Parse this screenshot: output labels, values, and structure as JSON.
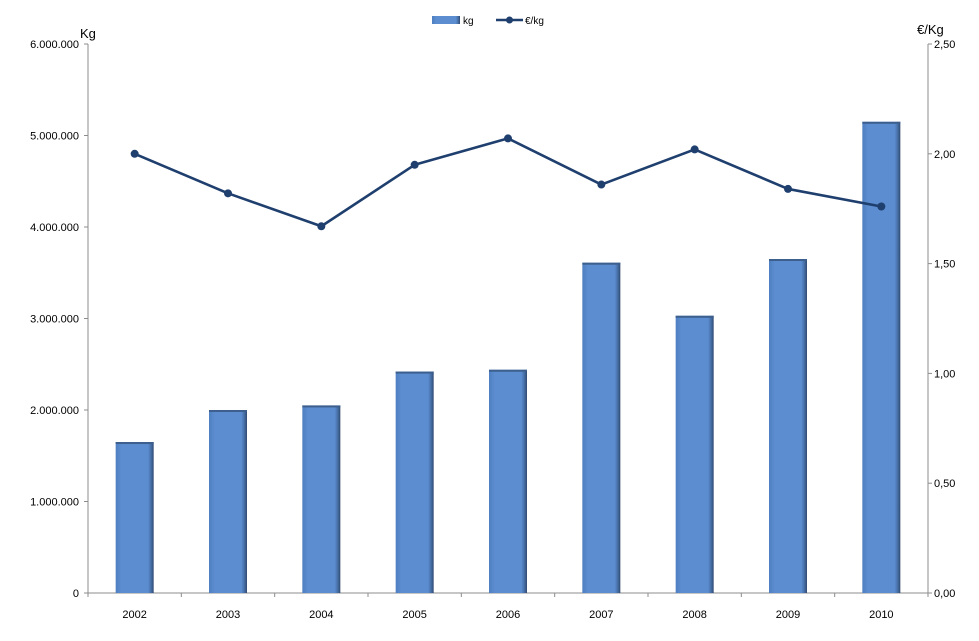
{
  "chart_data": {
    "type": "bar",
    "categories": [
      "2002",
      "2003",
      "2004",
      "2005",
      "2006",
      "2007",
      "2008",
      "2009",
      "2010"
    ],
    "series": [
      {
        "name": "kg",
        "type": "bar",
        "axis": "left",
        "values": [
          1650000,
          2000000,
          2050000,
          2420000,
          2440000,
          3610000,
          3030000,
          3650000,
          5150000
        ]
      },
      {
        "name": "€/kg",
        "type": "line",
        "axis": "right",
        "values": [
          2.0,
          1.82,
          1.67,
          1.95,
          2.07,
          1.86,
          2.02,
          1.84,
          1.76
        ]
      }
    ],
    "ylabel_left": "Kg",
    "ylabel_right": "€/Kg",
    "ylim_left": [
      0,
      6000000
    ],
    "ylim_right": [
      0,
      2.5
    ],
    "yticks_left": [
      "0",
      "1.000.000",
      "2.000.000",
      "3.000.000",
      "4.000.000",
      "5.000.000",
      "6.000.000"
    ],
    "yticks_right": [
      "0,00",
      "0,50",
      "1,00",
      "1,50",
      "2,00",
      "2,50"
    ],
    "legend_position": "top-center",
    "grid": false,
    "colors": {
      "bar": "#5a8ccd",
      "bar_dark": "#3c5f8d",
      "line": "#1f3f6e",
      "axis": "#8c8c8c"
    }
  }
}
